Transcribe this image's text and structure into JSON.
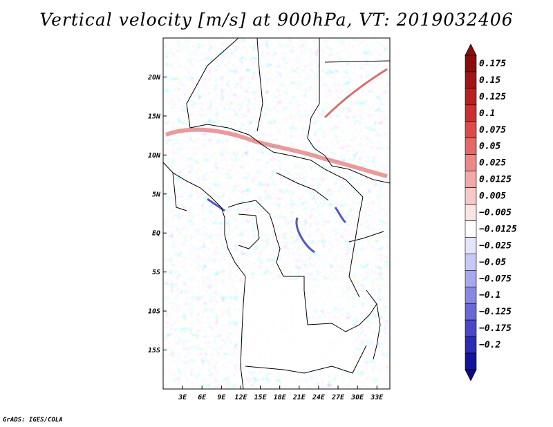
{
  "title": "Vertical velocity [m/s] at 900hPa, VT: 2019032406",
  "credit": "GrADS: IGES/COLA",
  "map": {
    "lat_labels": [
      {
        "label": "20N",
        "lat": 20
      },
      {
        "label": "15N",
        "lat": 15
      },
      {
        "label": "10N",
        "lat": 10
      },
      {
        "label": "5N",
        "lat": 5
      },
      {
        "label": "EQ",
        "lat": 0
      },
      {
        "label": "5S",
        "lat": -5
      },
      {
        "label": "10S",
        "lat": -10
      },
      {
        "label": "15S",
        "lat": -15
      }
    ],
    "lon_labels": [
      {
        "label": "3E",
        "lon": 3
      },
      {
        "label": "6E",
        "lon": 6
      },
      {
        "label": "9E",
        "lon": 9
      },
      {
        "label": "12E",
        "lon": 12
      },
      {
        "label": "15E",
        "lon": 15
      },
      {
        "label": "18E",
        "lon": 18
      },
      {
        "label": "21E",
        "lon": 21
      },
      {
        "label": "24E",
        "lon": 24
      },
      {
        "label": "27E",
        "lon": 27
      },
      {
        "label": "30E",
        "lon": 30
      },
      {
        "label": "33E",
        "lon": 33
      }
    ],
    "lon_range": [
      0,
      35
    ],
    "lat_range": [
      -20,
      25
    ]
  },
  "colorbar": {
    "levels": [
      {
        "label": "0.175",
        "color": "#a01515"
      },
      {
        "label": "0.15",
        "color": "#b82020"
      },
      {
        "label": "0.125",
        "color": "#cc3030"
      },
      {
        "label": "0.1",
        "color": "#dc4a4a"
      },
      {
        "label": "0.075",
        "color": "#e46868"
      },
      {
        "label": "0.05",
        "color": "#ec8888"
      },
      {
        "label": "0.025",
        "color": "#f2a8a8"
      },
      {
        "label": "0.0125",
        "color": "#f8c8c8"
      },
      {
        "label": "0.005",
        "color": "#fce4e4"
      },
      {
        "label": "−0.005",
        "color": "#ffffff"
      },
      {
        "label": "−0.0125",
        "color": "#e4e4fc"
      },
      {
        "label": "−0.025",
        "color": "#c8c8f6"
      },
      {
        "label": "−0.05",
        "color": "#a8a8ee"
      },
      {
        "label": "−0.075",
        "color": "#8888e4"
      },
      {
        "label": "−0.1",
        "color": "#6868d8"
      },
      {
        "label": "−0.125",
        "color": "#4848c8"
      },
      {
        "label": "−0.175",
        "color": "#2c2cb4"
      },
      {
        "label": "−0.2",
        "color": "#14149c"
      }
    ],
    "top_color": "#8c0c0c",
    "bottom_color": "#0c0c80"
  }
}
